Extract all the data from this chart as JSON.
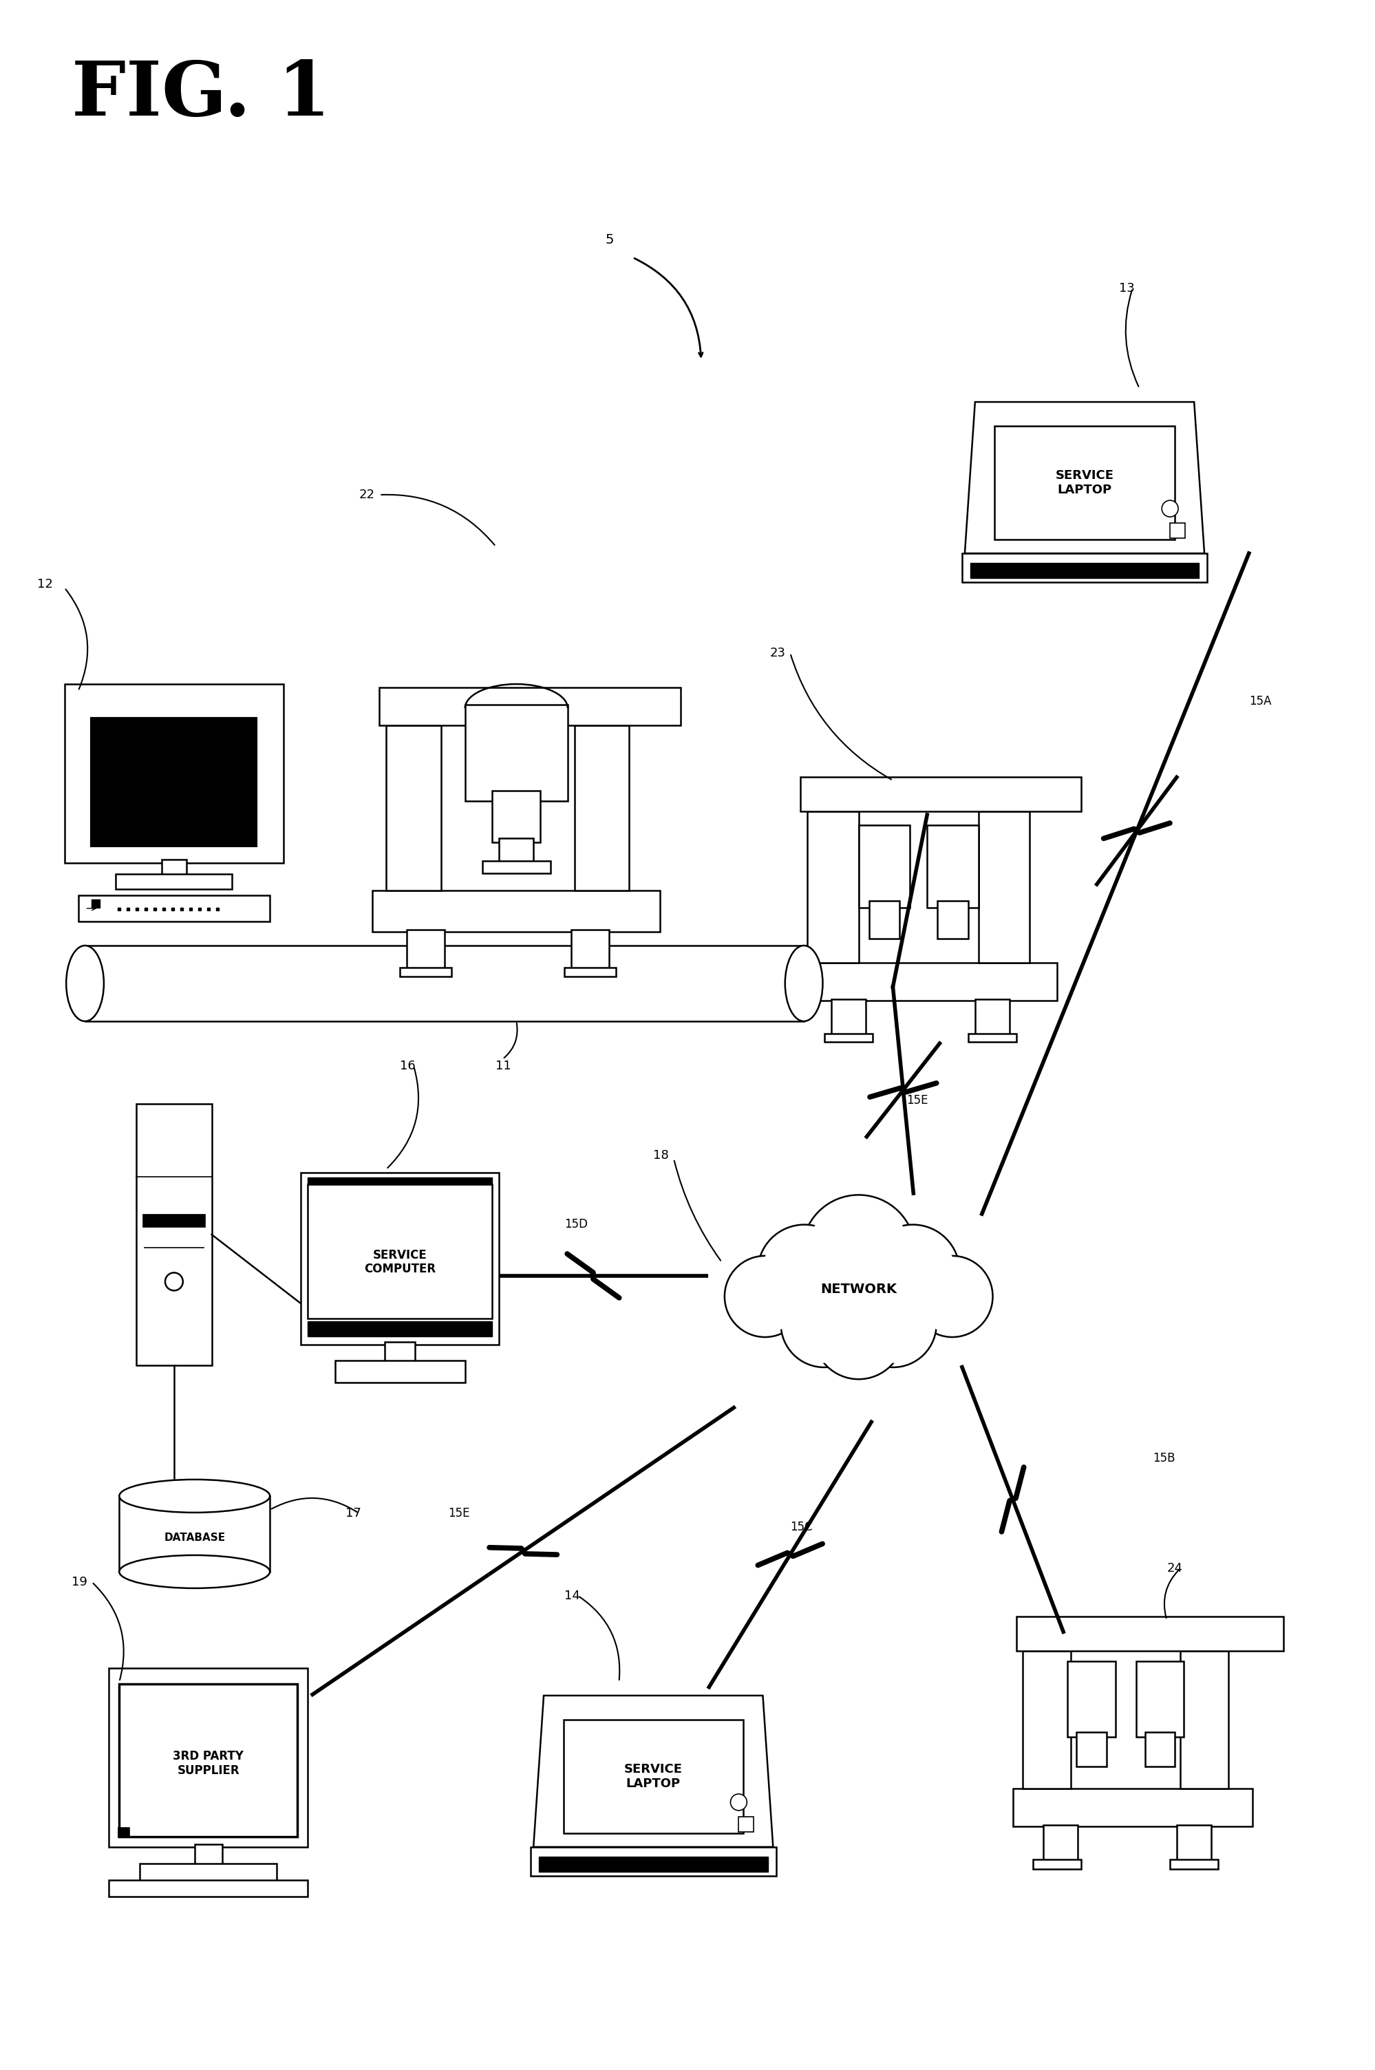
{
  "title": "FIG. 1",
  "bg_color": "#ffffff",
  "line_color": "#000000",
  "fig_width": 19.98,
  "fig_height": 30.08,
  "labels": {
    "fig_title": "FIG. 1",
    "label_5": "5",
    "label_11": "11",
    "label_12": "12",
    "label_13": "13",
    "label_14": "14",
    "label_15A": "15A",
    "label_15B": "15B",
    "label_15C": "15C",
    "label_15D": "15D",
    "label_15E_top": "15E",
    "label_15E_bot": "15E",
    "label_16": "16",
    "label_17": "17",
    "label_18": "18",
    "label_19": "19",
    "label_22": "22",
    "label_23": "23",
    "label_24": "24",
    "network_text": "NETWORK",
    "service_computer_text": "SERVICE\nCOMPUTER",
    "database_text": "DATABASE",
    "service_laptop1_text": "SERVICE\nLAPTOP",
    "service_laptop2_text": "SERVICE\nLAPTOP",
    "third_party_text": "3RD PARTY\nSUPPLIER"
  }
}
